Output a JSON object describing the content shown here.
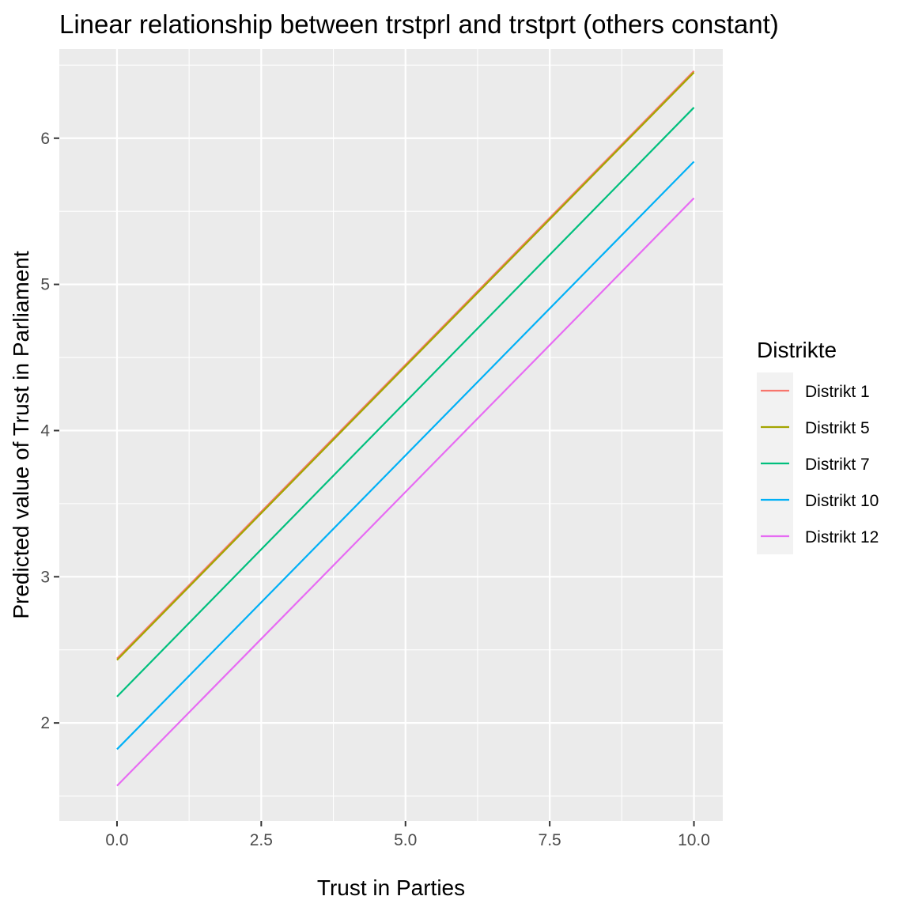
{
  "chart_data": {
    "type": "line",
    "title": "Linear relationship between trstprl and trstprt (others constant)",
    "xlabel": "Trust in Parties",
    "ylabel": "Predicted value of Trust in Parliament",
    "xlim": [
      -1.0,
      10.5
    ],
    "ylim": [
      1.33,
      6.61
    ],
    "x_ticks": [
      {
        "value": 0.0,
        "label": "0.0"
      },
      {
        "value": 2.5,
        "label": "2.5"
      },
      {
        "value": 5.0,
        "label": "5.0"
      },
      {
        "value": 7.5,
        "label": "7.5"
      },
      {
        "value": 10.0,
        "label": "10.0"
      }
    ],
    "y_ticks": [
      {
        "value": 2,
        "label": "2"
      },
      {
        "value": 3,
        "label": "3"
      },
      {
        "value": 4,
        "label": "4"
      },
      {
        "value": 5,
        "label": "5"
      },
      {
        "value": 6,
        "label": "6"
      }
    ],
    "grid": true,
    "legend": {
      "title": "Distrikte",
      "position": "right"
    },
    "series": [
      {
        "name": "Distrikt 1",
        "color": "#F8766D",
        "x": [
          0,
          10
        ],
        "y": [
          2.44,
          6.46
        ]
      },
      {
        "name": "Distrikt 5",
        "color": "#A3A500",
        "x": [
          0,
          10
        ],
        "y": [
          2.43,
          6.45
        ]
      },
      {
        "name": "Distrikt 7",
        "color": "#00BF7D",
        "x": [
          0,
          10
        ],
        "y": [
          2.18,
          6.21
        ]
      },
      {
        "name": "Distrikt 10",
        "color": "#00B0F6",
        "x": [
          0,
          10
        ],
        "y": [
          1.82,
          5.84
        ]
      },
      {
        "name": "Distrikt 12",
        "color": "#E76BF3",
        "x": [
          0,
          10
        ],
        "y": [
          1.57,
          5.59
        ]
      }
    ]
  }
}
